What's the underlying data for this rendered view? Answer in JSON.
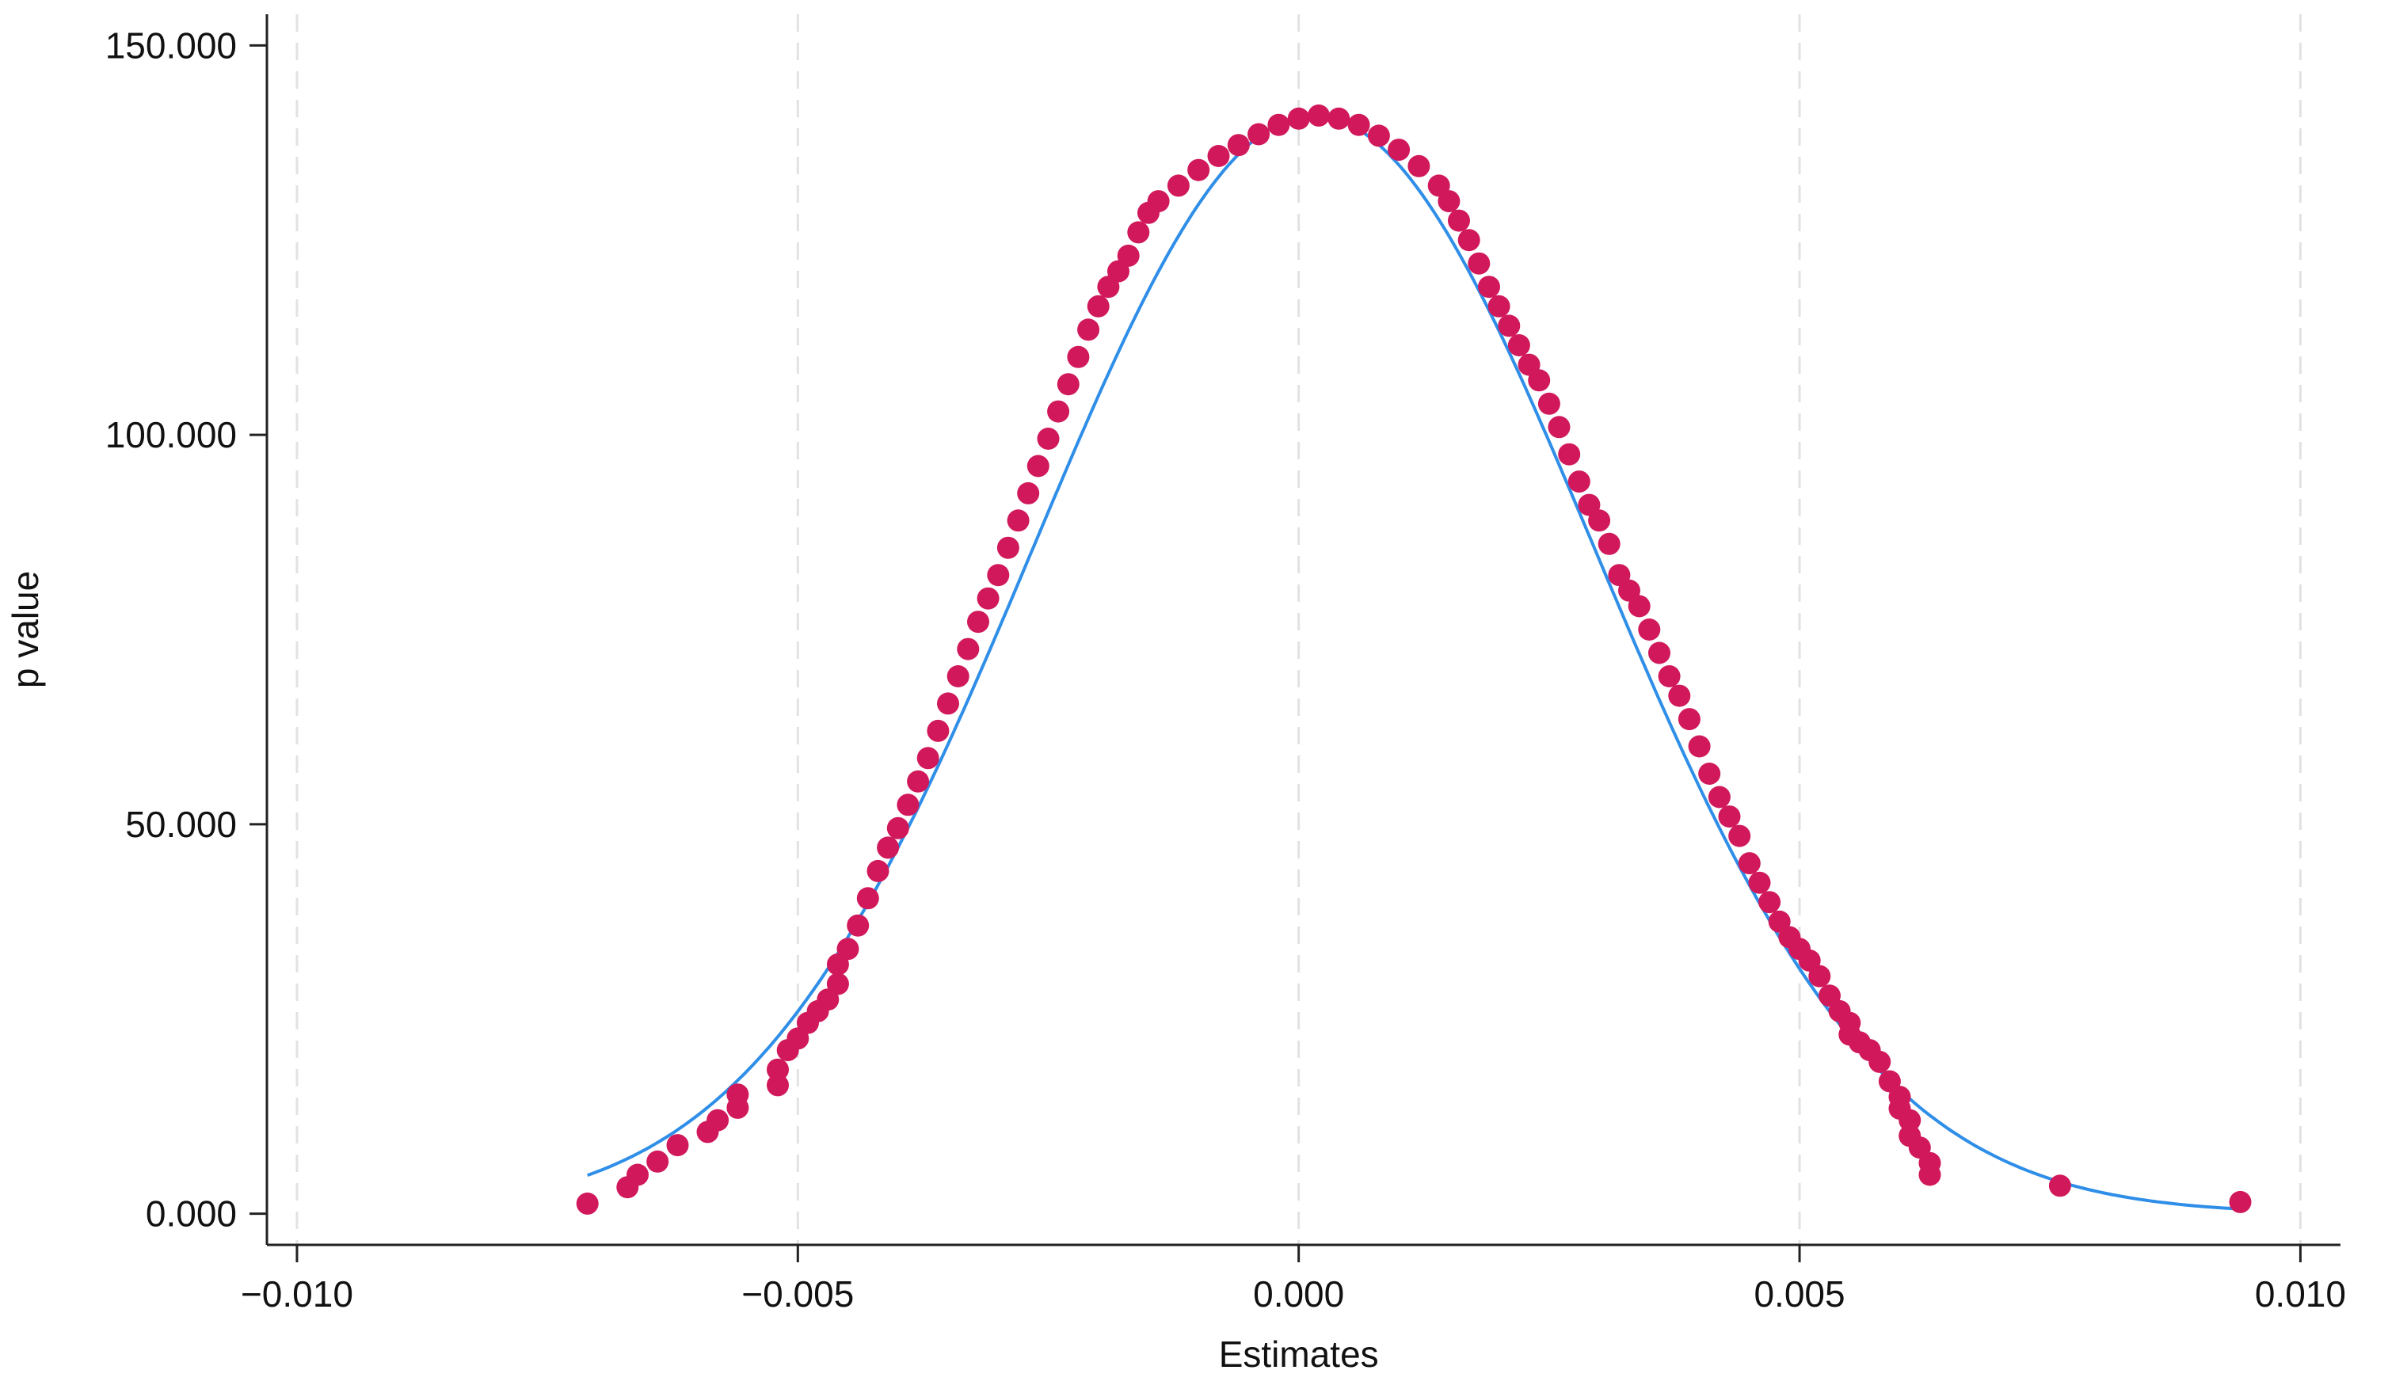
{
  "chart_data": {
    "type": "scatter",
    "title": "",
    "xlabel": "Estimates",
    "ylabel": "p value",
    "xlim": [
      -0.0103,
      0.0104
    ],
    "ylim": [
      -4,
      154
    ],
    "xticks": [
      -0.01,
      -0.005,
      0.0,
      0.005,
      0.01
    ],
    "xtick_labels": [
      "−0.010",
      "−0.005",
      "0.000",
      "0.005",
      "0.010"
    ],
    "yticks": [
      0,
      50,
      100,
      150
    ],
    "ytick_labels": [
      "0.000",
      "50.000",
      "100.000",
      "150.000"
    ],
    "grid": "vertical dashed at x ticks",
    "legend": "none",
    "colors": {
      "points": "#d0185a",
      "curve": "#2f8ee8",
      "grid": "#e2e2e2",
      "axis": "#222222"
    },
    "series": [
      {
        "type": "scatter",
        "points": [
          [
            -0.0071,
            1.3
          ],
          [
            -0.0067,
            3.4
          ],
          [
            -0.0066,
            5.0
          ],
          [
            -0.0064,
            6.7
          ],
          [
            -0.0062,
            8.8
          ],
          [
            -0.0059,
            10.5
          ],
          [
            -0.0058,
            12.0
          ],
          [
            -0.0056,
            13.6
          ],
          [
            -0.0056,
            15.3
          ],
          [
            -0.0052,
            16.5
          ],
          [
            -0.0052,
            18.5
          ],
          [
            -0.0051,
            21.0
          ],
          [
            -0.005,
            22.5
          ],
          [
            -0.0049,
            24.5
          ],
          [
            -0.0048,
            26.0
          ],
          [
            -0.0047,
            27.5
          ],
          [
            -0.0046,
            29.5
          ],
          [
            -0.0046,
            32.0
          ],
          [
            -0.0045,
            34.0
          ],
          [
            -0.0044,
            37.0
          ],
          [
            -0.0043,
            40.5
          ],
          [
            -0.0042,
            44.0
          ],
          [
            -0.0041,
            47.0
          ],
          [
            -0.004,
            49.5
          ],
          [
            -0.0039,
            52.5
          ],
          [
            -0.0038,
            55.5
          ],
          [
            -0.0037,
            58.5
          ],
          [
            -0.0036,
            62.0
          ],
          [
            -0.0035,
            65.5
          ],
          [
            -0.0034,
            69.0
          ],
          [
            -0.0033,
            72.5
          ],
          [
            -0.0032,
            76.0
          ],
          [
            -0.0031,
            79.0
          ],
          [
            -0.003,
            82.0
          ],
          [
            -0.0029,
            85.5
          ],
          [
            -0.0028,
            89.0
          ],
          [
            -0.0027,
            92.5
          ],
          [
            -0.0026,
            96.0
          ],
          [
            -0.0025,
            99.5
          ],
          [
            -0.0024,
            103.0
          ],
          [
            -0.0023,
            106.5
          ],
          [
            -0.0022,
            110.0
          ],
          [
            -0.0021,
            113.5
          ],
          [
            -0.002,
            116.5
          ],
          [
            -0.0019,
            119.0
          ],
          [
            -0.0018,
            121.0
          ],
          [
            -0.0017,
            123.0
          ],
          [
            -0.0016,
            126.0
          ],
          [
            -0.0015,
            128.5
          ],
          [
            -0.0014,
            130.0
          ],
          [
            -0.0012,
            132.0
          ],
          [
            -0.001,
            134.0
          ],
          [
            -0.0008,
            135.8
          ],
          [
            -0.0006,
            137.2
          ],
          [
            -0.0004,
            138.6
          ],
          [
            -0.0002,
            139.8
          ],
          [
            0.0,
            140.6
          ],
          [
            0.0002,
            141.0
          ],
          [
            0.0004,
            140.6
          ],
          [
            0.0006,
            139.8
          ],
          [
            0.0008,
            138.4
          ],
          [
            0.001,
            136.6
          ],
          [
            0.0012,
            134.5
          ],
          [
            0.0014,
            132.0
          ],
          [
            0.0015,
            130.0
          ],
          [
            0.0016,
            127.5
          ],
          [
            0.0017,
            125.0
          ],
          [
            0.0018,
            122.0
          ],
          [
            0.0019,
            119.0
          ],
          [
            0.002,
            116.5
          ],
          [
            0.0021,
            114.0
          ],
          [
            0.0022,
            111.5
          ],
          [
            0.0023,
            109.0
          ],
          [
            0.0024,
            107.0
          ],
          [
            0.0025,
            104.0
          ],
          [
            0.0026,
            101.0
          ],
          [
            0.0027,
            97.5
          ],
          [
            0.0028,
            94.0
          ],
          [
            0.0029,
            91.0
          ],
          [
            0.003,
            89.0
          ],
          [
            0.0031,
            86.0
          ],
          [
            0.0032,
            82.0
          ],
          [
            0.0033,
            80.0
          ],
          [
            0.0034,
            78.0
          ],
          [
            0.0035,
            75.0
          ],
          [
            0.0036,
            72.0
          ],
          [
            0.0037,
            69.0
          ],
          [
            0.0038,
            66.5
          ],
          [
            0.0039,
            63.5
          ],
          [
            0.004,
            60.0
          ],
          [
            0.0041,
            56.5
          ],
          [
            0.0042,
            53.5
          ],
          [
            0.0043,
            51.0
          ],
          [
            0.0044,
            48.5
          ],
          [
            0.0045,
            45.0
          ],
          [
            0.0046,
            42.5
          ],
          [
            0.0047,
            40.0
          ],
          [
            0.0048,
            37.5
          ],
          [
            0.0049,
            35.5
          ],
          [
            0.005,
            34.0
          ],
          [
            0.0051,
            32.5
          ],
          [
            0.0052,
            30.5
          ],
          [
            0.0053,
            28.0
          ],
          [
            0.0054,
            26.0
          ],
          [
            0.0055,
            24.5
          ],
          [
            0.0055,
            23.0
          ],
          [
            0.0056,
            22.0
          ],
          [
            0.0057,
            21.0
          ],
          [
            0.0058,
            19.5
          ],
          [
            0.0059,
            17.0
          ],
          [
            0.006,
            15.0
          ],
          [
            0.006,
            13.5
          ],
          [
            0.0061,
            12.0
          ],
          [
            0.0061,
            10.0
          ],
          [
            0.0062,
            8.5
          ],
          [
            0.0063,
            6.5
          ],
          [
            0.0063,
            5.0
          ],
          [
            0.0076,
            3.6
          ],
          [
            0.0094,
            1.5
          ]
        ]
      },
      {
        "type": "line",
        "mean": 0.00015,
        "sd": 0.0028,
        "peak": 141.0,
        "x_range": [
          -0.0071,
          0.0094
        ]
      }
    ]
  }
}
